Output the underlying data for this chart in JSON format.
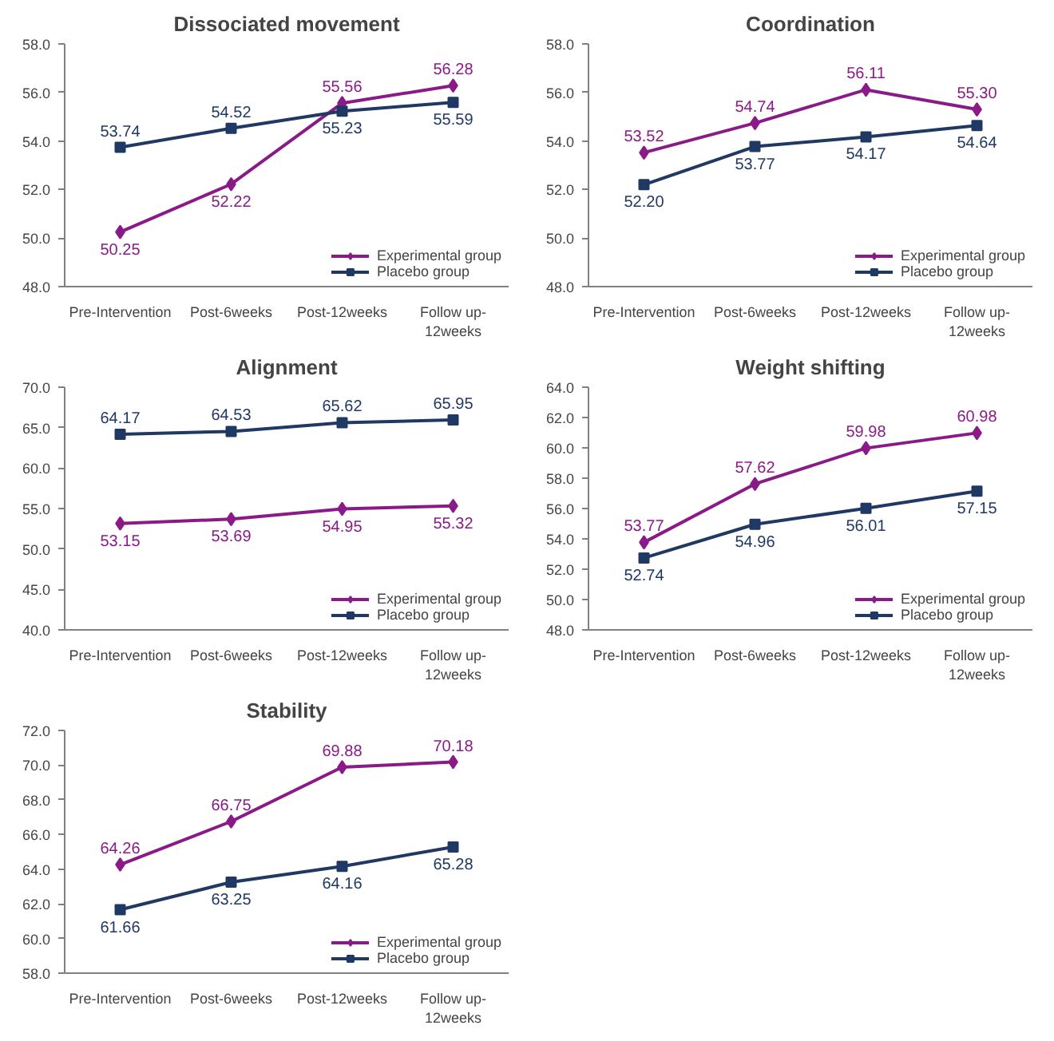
{
  "chart_data": [
    {
      "type": "line",
      "title": "Dissociated movement",
      "categories": [
        "Pre-Intervention",
        "Post-6weeks",
        "Post-12weeks",
        "Follow up-12weeks"
      ],
      "ylim": [
        48,
        58
      ],
      "yticks": [
        {
          "value": 48,
          "label": "48.0"
        },
        {
          "value": 50,
          "label": "50.0"
        },
        {
          "value": 52,
          "label": "52.0"
        },
        {
          "value": 54,
          "label": "54.0"
        },
        {
          "value": 56,
          "label": "56.0"
        },
        {
          "value": 58,
          "label": "58.0"
        }
      ],
      "grid": false,
      "legend": "bottom right",
      "line_style": "solid",
      "series": [
        {
          "name": "Experimental group",
          "color": "#8b1a89",
          "marker": "diamond",
          "values": [
            50.25,
            52.22,
            55.56,
            56.28
          ],
          "value_labels": [
            "50.25",
            "52.22",
            "55.56",
            "56.28"
          ]
        },
        {
          "name": "Placebo group",
          "color": "#1f3864",
          "marker": "square",
          "values": [
            53.74,
            54.52,
            55.23,
            55.59
          ],
          "value_labels": [
            "53.74",
            "54.52",
            "55.23",
            "55.59"
          ]
        }
      ]
    },
    {
      "type": "line",
      "title": "Coordination",
      "categories": [
        "Pre-Intervention",
        "Post-6weeks",
        "Post-12weeks",
        "Follow up-12weeks"
      ],
      "ylim": [
        48,
        58
      ],
      "yticks": [
        {
          "value": 48,
          "label": "48.0"
        },
        {
          "value": 50,
          "label": "50.0"
        },
        {
          "value": 52,
          "label": "52.0"
        },
        {
          "value": 54,
          "label": "54.0"
        },
        {
          "value": 56,
          "label": "56.0"
        },
        {
          "value": 58,
          "label": "58.0"
        }
      ],
      "grid": false,
      "legend": "bottom right",
      "line_style": "solid",
      "series": [
        {
          "name": "Experimental group",
          "color": "#8b1a89",
          "marker": "diamond",
          "values": [
            53.52,
            54.74,
            56.11,
            55.3
          ],
          "value_labels": [
            "53.52",
            "54.74",
            "56.11",
            "55.30"
          ]
        },
        {
          "name": "Placebo group",
          "color": "#1f3864",
          "marker": "square",
          "values": [
            52.2,
            53.77,
            54.17,
            54.64
          ],
          "value_labels": [
            "52.20",
            "53.77",
            "54.17",
            "54.64"
          ]
        }
      ]
    },
    {
      "type": "line",
      "title": "Alignment",
      "categories": [
        "Pre-Intervention",
        "Post-6weeks",
        "Post-12weeks",
        "Follow up-12weeks"
      ],
      "ylim": [
        40,
        70
      ],
      "yticks": [
        {
          "value": 40,
          "label": "40.0"
        },
        {
          "value": 45,
          "label": "45.0"
        },
        {
          "value": 50,
          "label": "50.0"
        },
        {
          "value": 55,
          "label": "55.0"
        },
        {
          "value": 60,
          "label": "60.0"
        },
        {
          "value": 65,
          "label": "65.0"
        },
        {
          "value": 70,
          "label": "70.0"
        }
      ],
      "grid": false,
      "legend": "bottom right",
      "line_style": "solid",
      "series": [
        {
          "name": "Experimental group",
          "color": "#8b1a89",
          "marker": "diamond",
          "values": [
            53.15,
            53.69,
            54.95,
            55.32
          ],
          "value_labels": [
            "53.15",
            "53.69",
            "54.95",
            "55.32"
          ]
        },
        {
          "name": "Placebo group",
          "color": "#1f3864",
          "marker": "square",
          "values": [
            64.17,
            64.53,
            65.62,
            65.95
          ],
          "value_labels": [
            "64.17",
            "64.53",
            "65.62",
            "65.95"
          ]
        }
      ]
    },
    {
      "type": "line",
      "title": "Weight shifting",
      "categories": [
        "Pre-Intervention",
        "Post-6weeks",
        "Post-12weeks",
        "Follow up-12weeks"
      ],
      "ylim": [
        48,
        64
      ],
      "yticks": [
        {
          "value": 48,
          "label": "48.0"
        },
        {
          "value": 50,
          "label": "50.0"
        },
        {
          "value": 52,
          "label": "52.0"
        },
        {
          "value": 54,
          "label": "54.0"
        },
        {
          "value": 56,
          "label": "56.0"
        },
        {
          "value": 58,
          "label": "58.0"
        },
        {
          "value": 60,
          "label": "60.0"
        },
        {
          "value": 62,
          "label": "62.0"
        },
        {
          "value": 64,
          "label": "64.0"
        }
      ],
      "grid": false,
      "legend": "bottom right",
      "line_style": "solid",
      "series": [
        {
          "name": "Experimental group",
          "color": "#8b1a89",
          "marker": "diamond",
          "values": [
            53.77,
            57.62,
            59.98,
            60.98
          ],
          "value_labels": [
            "53.77",
            "57.62",
            "59.98",
            "60.98"
          ]
        },
        {
          "name": "Placebo group",
          "color": "#1f3864",
          "marker": "square",
          "values": [
            52.74,
            54.96,
            56.01,
            57.15
          ],
          "value_labels": [
            "52.74",
            "54.96",
            "56.01",
            "57.15"
          ]
        }
      ]
    },
    {
      "type": "line",
      "title": "Stability",
      "categories": [
        "Pre-Intervention",
        "Post-6weeks",
        "Post-12weeks",
        "Follow up-12weeks"
      ],
      "ylim": [
        58,
        72
      ],
      "yticks": [
        {
          "value": 58,
          "label": "58.0"
        },
        {
          "value": 60,
          "label": "60.0"
        },
        {
          "value": 62,
          "label": "62.0"
        },
        {
          "value": 64,
          "label": "64.0"
        },
        {
          "value": 66,
          "label": "66.0"
        },
        {
          "value": 68,
          "label": "68.0"
        },
        {
          "value": 70,
          "label": "70.0"
        },
        {
          "value": 72,
          "label": "72.0"
        }
      ],
      "grid": false,
      "legend": "bottom right",
      "line_style": "solid",
      "series": [
        {
          "name": "Experimental group",
          "color": "#8b1a89",
          "marker": "diamond",
          "values": [
            64.26,
            66.75,
            69.88,
            70.18
          ],
          "value_labels": [
            "64.26",
            "66.75",
            "69.88",
            "70.18"
          ]
        },
        {
          "name": "Placebo group",
          "color": "#1f3864",
          "marker": "square",
          "values": [
            61.66,
            63.25,
            64.16,
            65.28
          ],
          "value_labels": [
            "61.66",
            "63.25",
            "64.16",
            "65.28"
          ]
        }
      ]
    }
  ]
}
